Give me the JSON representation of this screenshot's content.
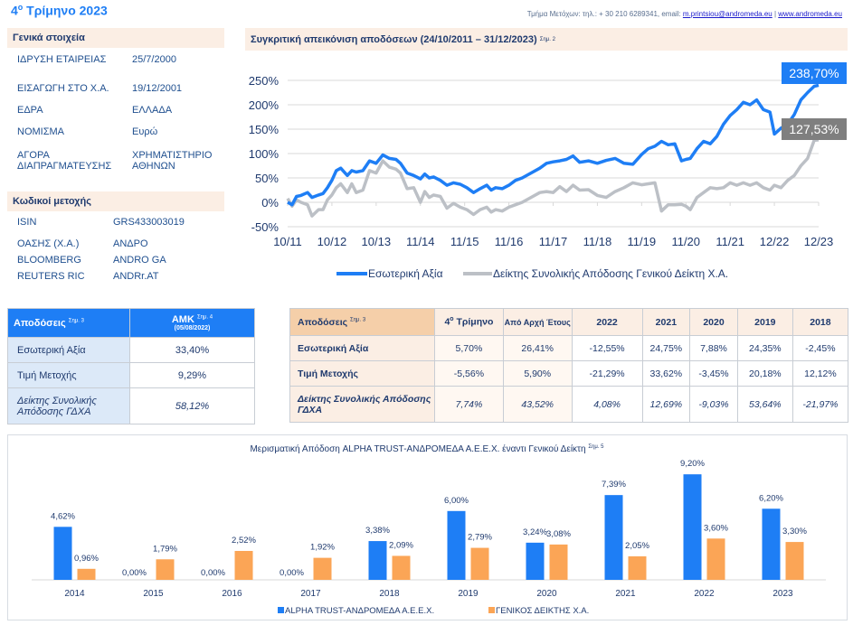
{
  "header": {
    "quarter_title_prefix": "4",
    "quarter_title_sup": "ο",
    "quarter_title_suffix": " Τρίμηνο 2023",
    "contact_text": "Τμήμα Μετόχων: τηλ.: + 30 210 6289341, email: ",
    "email": "m.printsiou@andromeda.eu",
    "separator": " | ",
    "website": "www.andromeda.eu"
  },
  "general": {
    "title": "Γενικά στοιχεία",
    "rows": [
      {
        "key": "ΙΔΡΥΣΗ ΕΤΑΙΡΕΙΑΣ",
        "value": "25/7/2000"
      },
      {
        "key": "ΕΙΣΑΓΩΓΗ ΣΤΟ Χ.Α.",
        "value": "19/12/2001"
      },
      {
        "key": "ΕΔΡΑ",
        "value": "ΕΛΛΑΔΑ"
      },
      {
        "key": "ΝΟΜΙΣΜΑ",
        "value": "Ευρώ"
      },
      {
        "key": " ΑΓΟΡΑ ΔΙΑΠΡΑΓΜΑΤΕΥΣΗΣ",
        "value": "ΧΡΗΜΑΤΙΣΤΗΡΙΟ ΑΘΗΝΩΝ"
      }
    ]
  },
  "codes": {
    "title": "Κωδικοί μετοχής",
    "rows": [
      {
        "key": "ISIN",
        "value": "GRS433003019"
      },
      {
        "key": "ΟΑΣΗΣ (Χ.Α.)",
        "value": "ΑΝΔΡΟ"
      },
      {
        "key": "BLOOMBERG",
        "value": "ANDRO GA"
      },
      {
        "key": "REUTERS RIC",
        "value": "ANDRr.AT"
      }
    ]
  },
  "line_chart_header": {
    "title": "Συγκριτική απεικόνιση αποδόσεων (24/10/2011 – 31/12/2023)",
    "note": "Σημ. 2"
  },
  "amk_table": {
    "header_label": "Αποδόσεις",
    "header_note": "Σημ. 3",
    "col_label": "ΑΜΚ",
    "col_note": "Σημ. 4",
    "col_date": "(05/08/2022)",
    "rows": [
      {
        "label": "Εσωτερική Αξία",
        "value": "33,40%",
        "italic": false
      },
      {
        "label": "Τιμή Μετοχής",
        "value": "9,29%",
        "italic": false
      },
      {
        "label": "Δείκτης Συνολικής Απόδοσης ΓΔΧΑ",
        "value": "58,12%",
        "italic": true
      }
    ]
  },
  "returns_table": {
    "header_label": "Αποδόσεις",
    "header_note": "Σημ. 3",
    "q_prefix": "4",
    "q_sup": "ο",
    "q_suffix": " Τρίμηνο",
    "ytd": "Από Αρχή Έτους",
    "years": [
      "2022",
      "2021",
      "2020",
      "2019",
      "2018"
    ],
    "rows": [
      {
        "label": "Εσωτερική Αξία",
        "q4": "5,70%",
        "ytd": "26,41%",
        "years": [
          "-12,55%",
          "24,75%",
          "7,88%",
          "24,35%",
          "-2,45%"
        ]
      },
      {
        "label": "Τιμή Μετοχής",
        "q4": "-5,56%",
        "ytd": "5,90%",
        "years": [
          "-21,29%",
          "33,62%",
          "-3,45%",
          "20,18%",
          "12,12%"
        ]
      },
      {
        "label": "Δείκτης Συνολικής Απόδοσης ΓΔΧΑ",
        "q4": "7,74%",
        "ytd": "43,52%",
        "years": [
          "4,08%",
          "12,69%",
          "-9,03%",
          "53,64%",
          "-21,97%"
        ]
      }
    ]
  },
  "colors": {
    "blue": "#1e7ef5",
    "gray": "#bcc0c6",
    "orange": "#fba556",
    "gray_label": "#7f7f7f"
  },
  "chart_data": [
    {
      "type": "line",
      "title": "Συγκριτική απεικόνιση αποδόσεων (24/10/2011 – 31/12/2023)",
      "xlabel": "",
      "ylabel": "",
      "x_ticks": [
        "10/11",
        "10/12",
        "10/13",
        "11/14",
        "11/15",
        "11/16",
        "11/17",
        "11/18",
        "11/19",
        "11/20",
        "11/21",
        "12/22",
        "12/23"
      ],
      "y_ticks": [
        "-50%",
        "0%",
        "50%",
        "100%",
        "150%",
        "200%",
        "250%"
      ],
      "ylim": [
        -50,
        250
      ],
      "grid": true,
      "legend": "bottom",
      "end_labels": [
        "238,70%",
        "127,53%"
      ],
      "series": [
        {
          "name": "Εσωτερική Αξία",
          "x": [
            0,
            0.1,
            0.2,
            0.3,
            0.45,
            0.55,
            0.7,
            0.8,
            0.9,
            1.0,
            1.1,
            1.2,
            1.35,
            1.45,
            1.55,
            1.7,
            1.85,
            2.0,
            2.15,
            2.3,
            2.45,
            2.55,
            2.7,
            2.85,
            3.0,
            3.1,
            3.2,
            3.3,
            3.45,
            3.6,
            3.75,
            3.9,
            4.05,
            4.2,
            4.35,
            4.5,
            4.6,
            4.7,
            4.85,
            5.0,
            5.15,
            5.3,
            5.5,
            5.7,
            5.85,
            6.0,
            6.15,
            6.3,
            6.45,
            6.6,
            6.8,
            7.0,
            7.2,
            7.4,
            7.6,
            7.8,
            8.0,
            8.15,
            8.3,
            8.45,
            8.6,
            8.75,
            8.9,
            9.0,
            9.1,
            9.25,
            9.4,
            9.55,
            9.7,
            9.85,
            10.0,
            10.15,
            10.3,
            10.45,
            10.6,
            10.75,
            10.9,
            11.0,
            11.15,
            11.3,
            11.45,
            11.6,
            11.75,
            11.9,
            12.0
          ],
          "values": [
            0,
            -5,
            12,
            14,
            20,
            10,
            15,
            18,
            30,
            45,
            65,
            70,
            55,
            65,
            62,
            65,
            85,
            80,
            97,
            90,
            88,
            80,
            60,
            55,
            48,
            58,
            50,
            52,
            45,
            35,
            40,
            37,
            30,
            20,
            28,
            35,
            25,
            30,
            28,
            35,
            45,
            50,
            60,
            70,
            80,
            83,
            85,
            88,
            95,
            82,
            85,
            80,
            86,
            90,
            80,
            78,
            98,
            110,
            115,
            125,
            118,
            120,
            85,
            88,
            90,
            110,
            125,
            120,
            135,
            160,
            178,
            190,
            205,
            200,
            210,
            190,
            185,
            140,
            152,
            160,
            180,
            210,
            225,
            238,
            240
          ]
        },
        {
          "name": "Δείκτης Συνολικής Απόδοσης Γενικού Δείκτη Χ.Α.",
          "x": [
            0,
            0.1,
            0.2,
            0.3,
            0.45,
            0.55,
            0.7,
            0.8,
            0.9,
            1.0,
            1.1,
            1.2,
            1.35,
            1.45,
            1.55,
            1.7,
            1.85,
            2.0,
            2.15,
            2.3,
            2.45,
            2.55,
            2.7,
            2.85,
            3.0,
            3.1,
            3.2,
            3.3,
            3.45,
            3.6,
            3.75,
            3.9,
            4.05,
            4.2,
            4.35,
            4.5,
            4.6,
            4.7,
            4.85,
            5.0,
            5.15,
            5.3,
            5.5,
            5.7,
            5.85,
            6.0,
            6.15,
            6.3,
            6.45,
            6.6,
            6.8,
            7.0,
            7.2,
            7.4,
            7.6,
            7.8,
            8.0,
            8.15,
            8.3,
            8.45,
            8.6,
            8.75,
            8.9,
            9.0,
            9.1,
            9.25,
            9.4,
            9.55,
            9.7,
            9.85,
            10.0,
            10.15,
            10.3,
            10.45,
            10.6,
            10.75,
            10.9,
            11.0,
            11.15,
            11.3,
            11.45,
            11.6,
            11.75,
            11.9,
            12.0
          ],
          "values": [
            8,
            -8,
            5,
            0,
            -5,
            -28,
            -15,
            -15,
            5,
            15,
            30,
            38,
            20,
            38,
            20,
            25,
            65,
            60,
            85,
            72,
            68,
            60,
            28,
            30,
            0,
            22,
            10,
            15,
            12,
            -12,
            -2,
            -10,
            -15,
            -25,
            -15,
            -10,
            -20,
            -15,
            -18,
            -10,
            -5,
            0,
            10,
            20,
            22,
            20,
            32,
            22,
            35,
            25,
            26,
            14,
            10,
            22,
            30,
            40,
            36,
            38,
            40,
            -18,
            -5,
            -5,
            -4,
            -8,
            -15,
            10,
            20,
            30,
            28,
            30,
            40,
            35,
            40,
            35,
            40,
            30,
            25,
            35,
            30,
            45,
            55,
            75,
            90,
            127,
            128
          ]
        }
      ]
    },
    {
      "type": "bar",
      "title": "Μερισματική Απόδοση ALPHA TRUST-ΑΝΔΡΟΜΕΔΑ Α.Ε.Ε.Χ. έναντι Γενικού Δείκτη",
      "title_note": "Σημ. 5",
      "categories": [
        "2014",
        "2015",
        "2016",
        "2017",
        "2018",
        "2019",
        "2020",
        "2021",
        "2022",
        "2023"
      ],
      "series": [
        {
          "name": "ALPHA TRUST-ΑΝΔΡΟΜΕΔΑ Α.Ε.Ε.Χ.",
          "values": [
            4.62,
            0.0,
            0.0,
            0.0,
            3.38,
            6.0,
            3.24,
            7.39,
            9.2,
            6.2
          ],
          "labels": [
            "4,62%",
            "0,00%",
            "0,00%",
            "0,00%",
            "3,38%",
            "6,00%",
            "3,24%",
            "7,39%",
            "9,20%",
            "6,20%"
          ]
        },
        {
          "name": "ΓΕΝΙΚΟΣ ΔΕΙΚΤΗΣ Χ.Α.",
          "values": [
            0.96,
            1.79,
            2.52,
            1.92,
            2.09,
            2.79,
            3.08,
            2.05,
            3.6,
            3.3
          ],
          "labels": [
            "0,96%",
            "1,79%",
            "2,52%",
            "1,92%",
            "2,09%",
            "2,79%",
            "3,08%",
            "2,05%",
            "3,60%",
            "3,30%"
          ]
        }
      ],
      "xlabel": "",
      "ylabel": "",
      "ylim": [
        0,
        10
      ],
      "legend": "bottom",
      "grid": false
    }
  ]
}
